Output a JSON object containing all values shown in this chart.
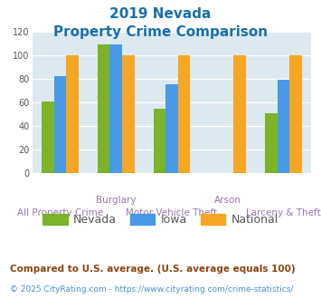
{
  "title_line1": "2019 Nevada",
  "title_line2": "Property Crime Comparison",
  "title_color": "#1a6faf",
  "nevada": [
    61,
    109,
    55,
    0,
    51
  ],
  "iowa": [
    82,
    109,
    75,
    0,
    79
  ],
  "national": [
    100,
    100,
    100,
    100,
    100
  ],
  "top_labels": [
    "",
    "Burglary",
    "",
    "Arson",
    ""
  ],
  "bottom_labels": [
    "All Property Crime",
    "",
    "Motor Vehicle Theft",
    "",
    "Larceny & Theft"
  ],
  "nevada_color": "#7db32a",
  "iowa_color": "#4899e8",
  "national_color": "#f5a623",
  "ylim": [
    0,
    120
  ],
  "yticks": [
    0,
    20,
    40,
    60,
    80,
    100,
    120
  ],
  "plot_bg": "#dce9f0",
  "legend_labels": [
    "Nevada",
    "Iowa",
    "National"
  ],
  "label_color": "#9977aa",
  "footnote": "Compared to U.S. average. (U.S. average equals 100)",
  "footnote2": "© 2025 CityRating.com - https://www.cityrating.com/crime-statistics/",
  "footnote_color": "#8b4513",
  "footnote2_color": "#4a90d9",
  "legend_text_color": "#555555"
}
